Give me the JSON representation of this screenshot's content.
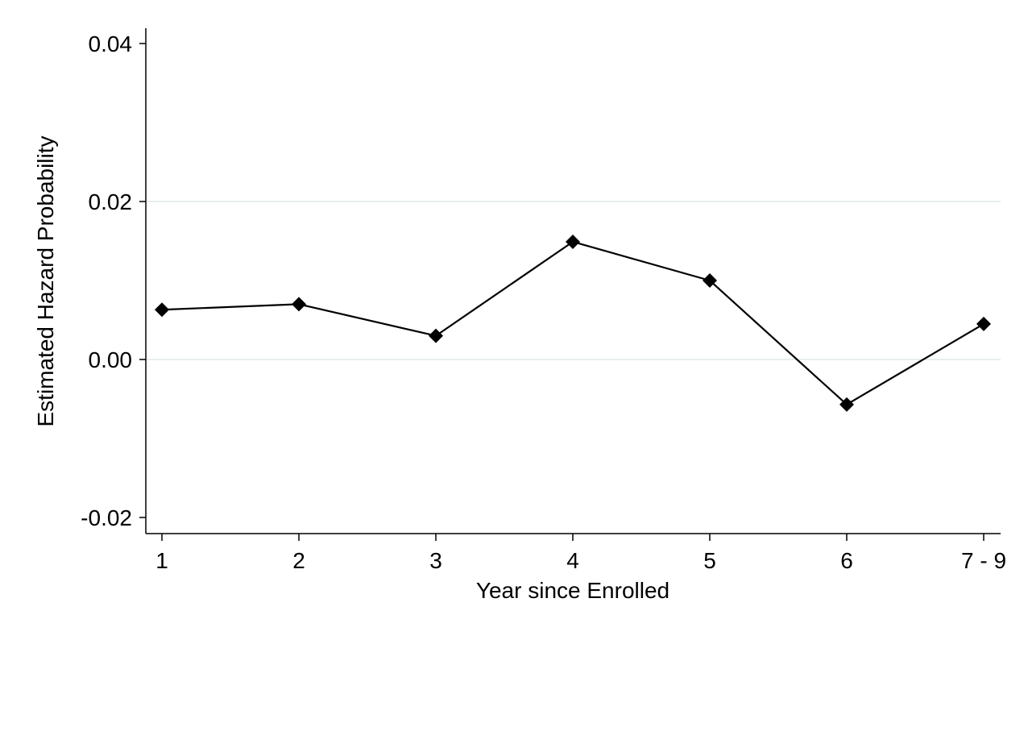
{
  "chart_data": {
    "type": "line",
    "title": "",
    "xlabel": "Year since Enrolled",
    "ylabel": "Estimated Hazard Probability",
    "categories": [
      "1",
      "2",
      "3",
      "4",
      "5",
      "6",
      "7 - 9"
    ],
    "series": [
      {
        "values": [
          0.0063,
          0.007,
          0.003,
          0.0149,
          0.01,
          -0.0057,
          0.0045
        ]
      }
    ],
    "marker": "diamond",
    "ylim": [
      -0.022,
      0.042
    ],
    "yticks": [
      -0.02,
      0.0,
      0.02,
      0.04
    ],
    "ytick_labels": [
      "-0.02",
      "0.00",
      "0.02",
      "0.04"
    ],
    "grid": "horizontal",
    "legend": "none",
    "colors": {
      "line": "#000000",
      "marker": "#000000",
      "grid": "#e8eeee",
      "axis": "#000000"
    }
  }
}
